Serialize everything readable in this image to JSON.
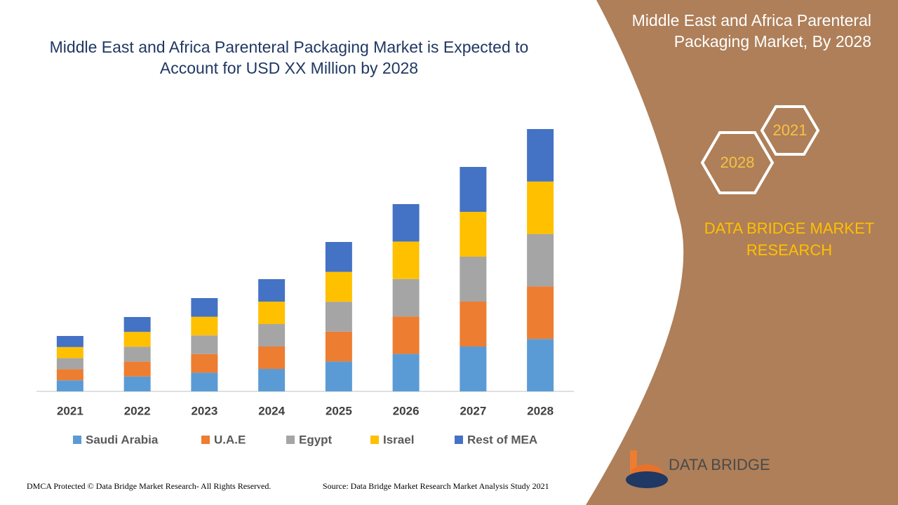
{
  "chart_data": {
    "type": "bar",
    "stacked": true,
    "title": "Middle East and Africa Parenteral Packaging Market is Expected to Account for USD XX Million by 2028",
    "categories": [
      "2021",
      "2022",
      "2023",
      "2024",
      "2025",
      "2026",
      "2027",
      "2028"
    ],
    "series": [
      {
        "name": "Saudi Arabia",
        "color": "#5b9bd5",
        "values": [
          15.8,
          21.2,
          26.6,
          32,
          42.6,
          53.4,
          64,
          74.8
        ]
      },
      {
        "name": "U.A.E",
        "color": "#ed7d31",
        "values": [
          15.8,
          21.2,
          26.6,
          32,
          42.6,
          53.4,
          64,
          74.8
        ]
      },
      {
        "name": "Egypt",
        "color": "#a5a5a5",
        "values": [
          15.8,
          21.2,
          26.6,
          32,
          42.6,
          53.4,
          64,
          74.8
        ]
      },
      {
        "name": "Israel",
        "color": "#ffc000",
        "values": [
          15.8,
          21.2,
          26.6,
          32,
          42.6,
          53.4,
          64,
          74.8
        ]
      },
      {
        "name": "Rest of MEA",
        "color": "#4472c4",
        "values": [
          15.8,
          21.2,
          26.6,
          32,
          42.6,
          53.4,
          64,
          74.8
        ]
      }
    ],
    "ylim": [
      0,
      400
    ],
    "grid": false,
    "legend": "bottom"
  },
  "panel": {
    "title": "Middle East and Africa Parenteral Packaging Market, By 2028",
    "hexagons": [
      "2021",
      "2028"
    ],
    "brand": "DATA BRIDGE MARKET RESEARCH"
  },
  "logo": "DATA BRIDGE",
  "footer": {
    "left": "DMCA Protected © Data Bridge Market Research- All Rights Reserved.",
    "right": "Source: Data Bridge Market Research Market Analysis Study 2021"
  }
}
